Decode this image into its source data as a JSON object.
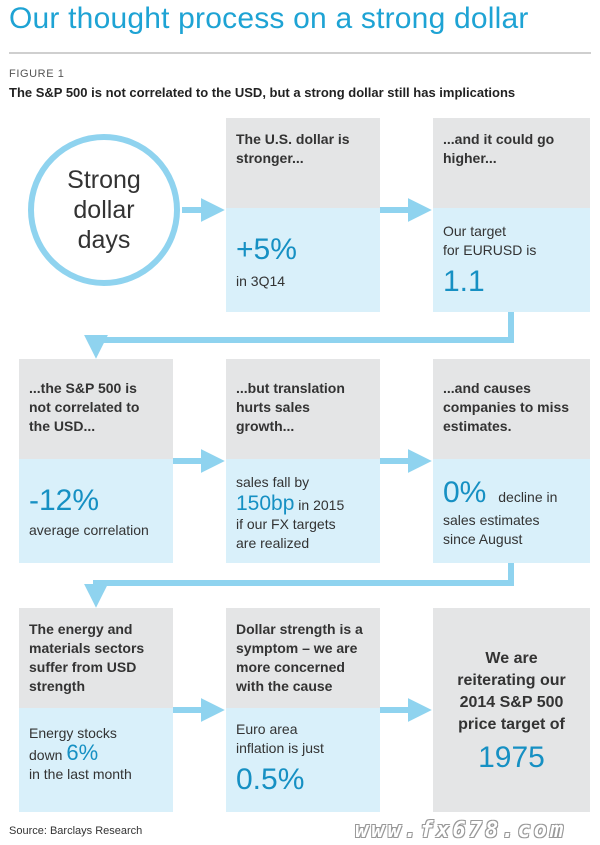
{
  "title": "Our thought process on a strong dollar",
  "figure_label": "FIGURE 1",
  "subtitle": "The S&P 500 is not correlated to the USD, but a strong dollar still has implications",
  "circle_lines": [
    "Strong",
    "dollar",
    "days"
  ],
  "row1": {
    "col2_grey": [
      "The U.S. dollar is",
      "stronger..."
    ],
    "col2_blue_big": "+5%",
    "col2_blue_text": "in 3Q14",
    "col3_grey": [
      "...and it could go",
      "higher..."
    ],
    "col3_blue_text": [
      "Our target",
      "for EURUSD is"
    ],
    "col3_blue_big": "1.1"
  },
  "row2": {
    "col1_grey": [
      "...the S&P 500 is",
      "not correlated to",
      "the USD..."
    ],
    "col1_blue_big": "-12%",
    "col1_blue_text": "average correlation",
    "col2_grey": [
      "...but translation",
      "hurts sales",
      "growth..."
    ],
    "col2_blue_line1": "sales fall by",
    "col2_blue_big": "150bp",
    "col2_blue_after": "in 2015",
    "col2_blue_rest": [
      "if our FX targets",
      "are realized"
    ],
    "col3_grey": [
      "...and causes",
      "companies to miss",
      "estimates."
    ],
    "col3_blue_big": "0%",
    "col3_blue_after": "decline in",
    "col3_blue_rest": [
      "sales estimates",
      "since August"
    ]
  },
  "row3": {
    "col1_grey": [
      "The energy and",
      "materials sectors",
      "suffer from USD",
      "strength"
    ],
    "col1_blue_line1": "Energy stocks",
    "col1_blue_before": "down",
    "col1_blue_big": "6%",
    "col1_blue_line3": "in the last month",
    "col2_grey": [
      "Dollar strength is a",
      "symptom – we are",
      "more concerned",
      "with the cause"
    ],
    "col2_blue_text": [
      "Euro area",
      "inflation is just"
    ],
    "col2_blue_big": "0.5%",
    "col3_lines": [
      "We are",
      "reiterating our",
      "2014 S&P 500",
      "price target of"
    ],
    "col3_big": "1975"
  },
  "source": "Source: Barclays Research",
  "watermark": "www.fx678.com",
  "colors": {
    "accent": "#1ea3d4",
    "arrow": "#8fd3ef",
    "grey_box": "#e4e5e6",
    "blue_box": "#d9f0fa"
  }
}
